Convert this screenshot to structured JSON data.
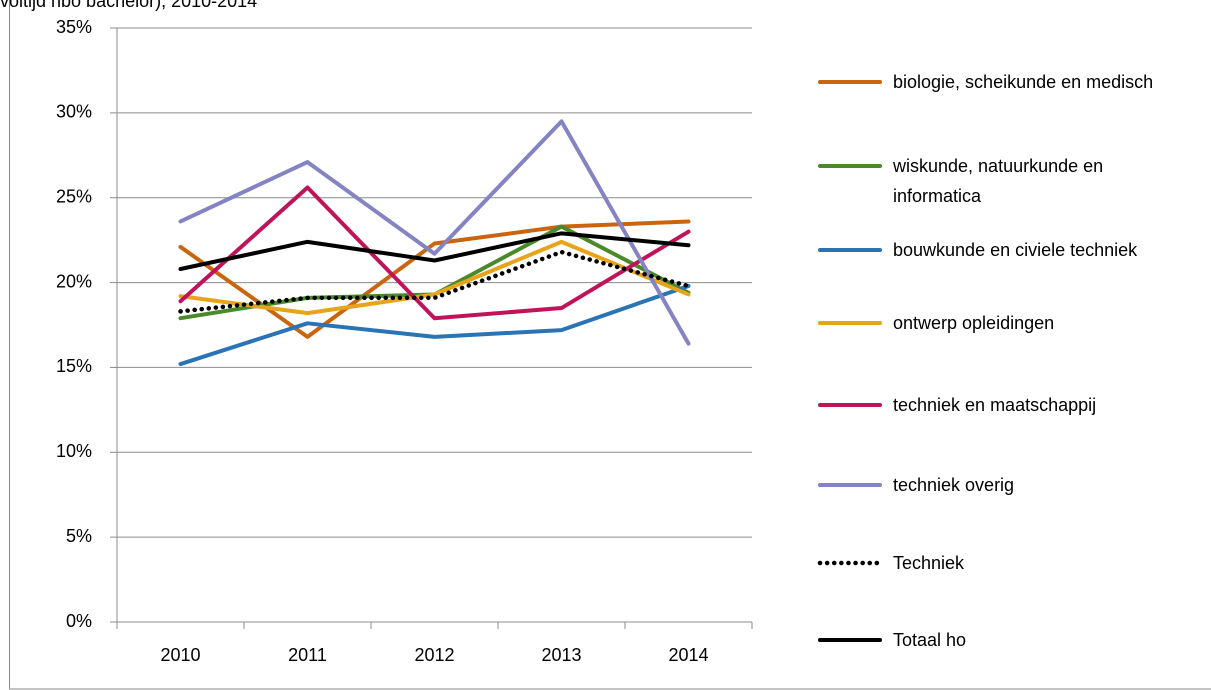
{
  "chart_data": {
    "type": "line",
    "title": "voltijd hbo bachelor), 2010-2014",
    "categories": [
      "2010",
      "2011",
      "2012",
      "2013",
      "2014"
    ],
    "ylim": [
      0,
      35
    ],
    "yticks": [
      {
        "value": 0,
        "label": "0%"
      },
      {
        "value": 5,
        "label": "5%"
      },
      {
        "value": 10,
        "label": "10%"
      },
      {
        "value": 15,
        "label": "15%"
      },
      {
        "value": 20,
        "label": "20%"
      },
      {
        "value": 25,
        "label": "25%"
      },
      {
        "value": 30,
        "label": "30%"
      },
      {
        "value": 35,
        "label": "35%"
      }
    ],
    "grid": true,
    "legend": "right",
    "series": [
      {
        "name": "biologie, scheikunde en medisch",
        "color": "#c9650f",
        "style": "solid",
        "values": [
          22.1,
          16.8,
          22.3,
          23.3,
          23.6
        ]
      },
      {
        "name": "wiskunde, natuurkunde en informatica",
        "color": "#4a8a2a",
        "style": "solid",
        "values": [
          17.9,
          19.1,
          19.3,
          23.3,
          19.4
        ]
      },
      {
        "name": "bouwkunde en civiele techniek",
        "color": "#2a74b5",
        "style": "solid",
        "values": [
          15.2,
          17.6,
          16.8,
          17.2,
          19.8
        ]
      },
      {
        "name": "ontwerp opleidingen",
        "color": "#e8a419",
        "style": "solid",
        "values": [
          19.2,
          18.2,
          19.3,
          22.4,
          19.3
        ]
      },
      {
        "name": "techniek en maatschappij",
        "color": "#c0145a",
        "style": "solid",
        "values": [
          18.9,
          25.6,
          17.9,
          18.5,
          23.0
        ]
      },
      {
        "name": "techniek overig",
        "color": "#8484c4",
        "style": "solid",
        "values": [
          23.6,
          27.1,
          21.7,
          29.5,
          16.4
        ]
      },
      {
        "name": "Techniek",
        "color": "#000000",
        "style": "dotted",
        "values": [
          18.3,
          19.1,
          19.1,
          21.8,
          19.8
        ]
      },
      {
        "name": "Totaal ho",
        "color": "#000000",
        "style": "solid",
        "values": [
          20.8,
          22.4,
          21.3,
          22.9,
          22.2
        ]
      }
    ]
  }
}
